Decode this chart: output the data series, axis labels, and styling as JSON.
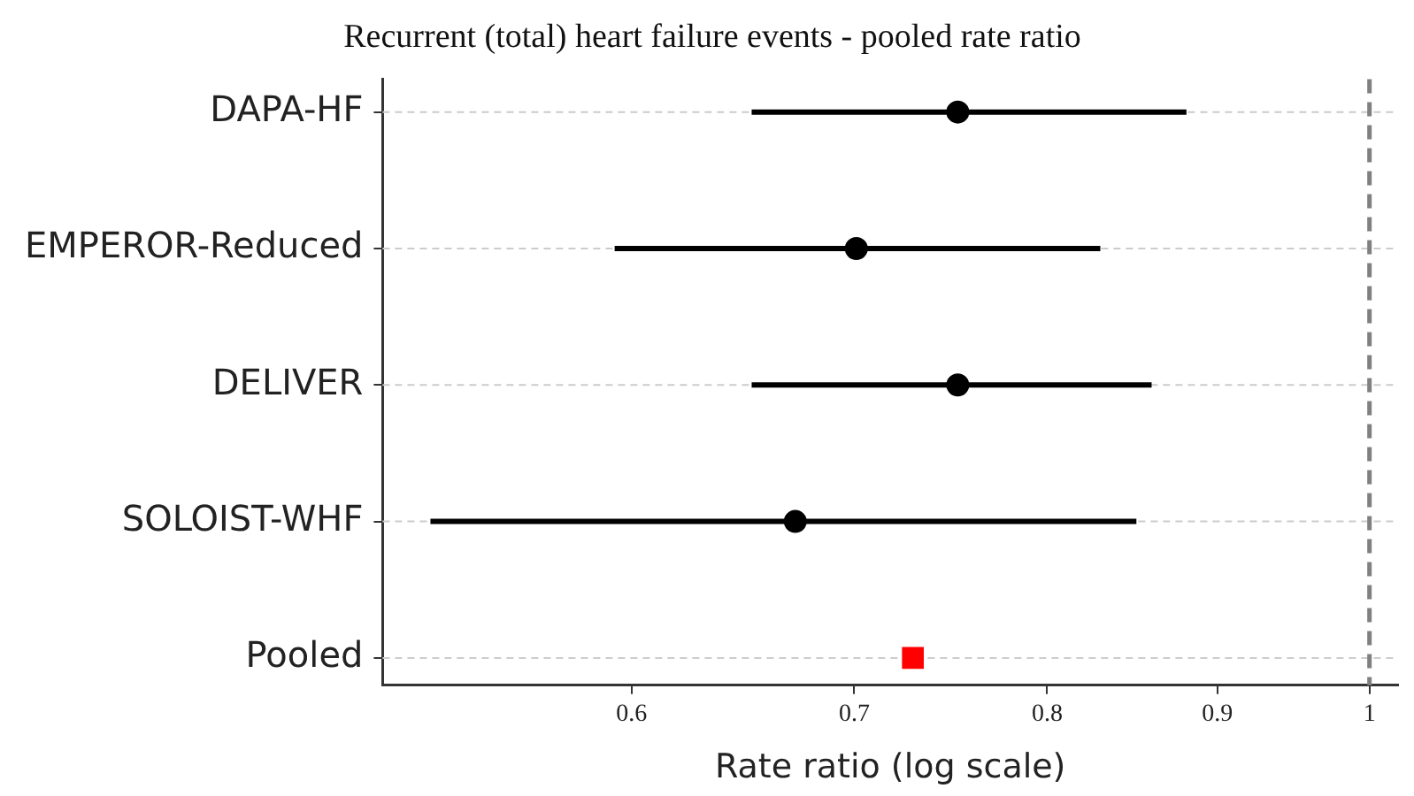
{
  "chart_data": {
    "type": "scatter",
    "orientation": "horizontal",
    "title": "Recurrent (total) heart failure events - pooled rate ratio",
    "xlabel": "Rate ratio (log scale)",
    "categories": [
      "DAPA-HF",
      "EMPEROR-Reduced",
      "DELIVER",
      "SOLOIST-WHF",
      "Pooled"
    ],
    "series": [
      {
        "color": "#000000",
        "marker": "circle",
        "values": [
          0.752,
          0.701,
          0.752,
          0.672,
          null
        ],
        "errors": [
          [
            0.652,
            0.881
          ],
          [
            0.593,
            0.83
          ],
          [
            0.652,
            0.86
          ],
          [
            0.522,
            0.851
          ],
          null
        ]
      },
      {
        "color": "#ff0000",
        "marker": "square",
        "values": [
          null,
          null,
          null,
          null,
          0.729
        ]
      }
    ],
    "log": "x",
    "xlim": [
      0.505,
      1.02
    ],
    "xticks": [
      0.6,
      0.7,
      0.8,
      0.9,
      1
    ],
    "grid": "y",
    "legend": false,
    "ref_lines": [
      {
        "axis": "x",
        "value": 1,
        "color": "#808080",
        "line_style": "dashed"
      }
    ]
  }
}
